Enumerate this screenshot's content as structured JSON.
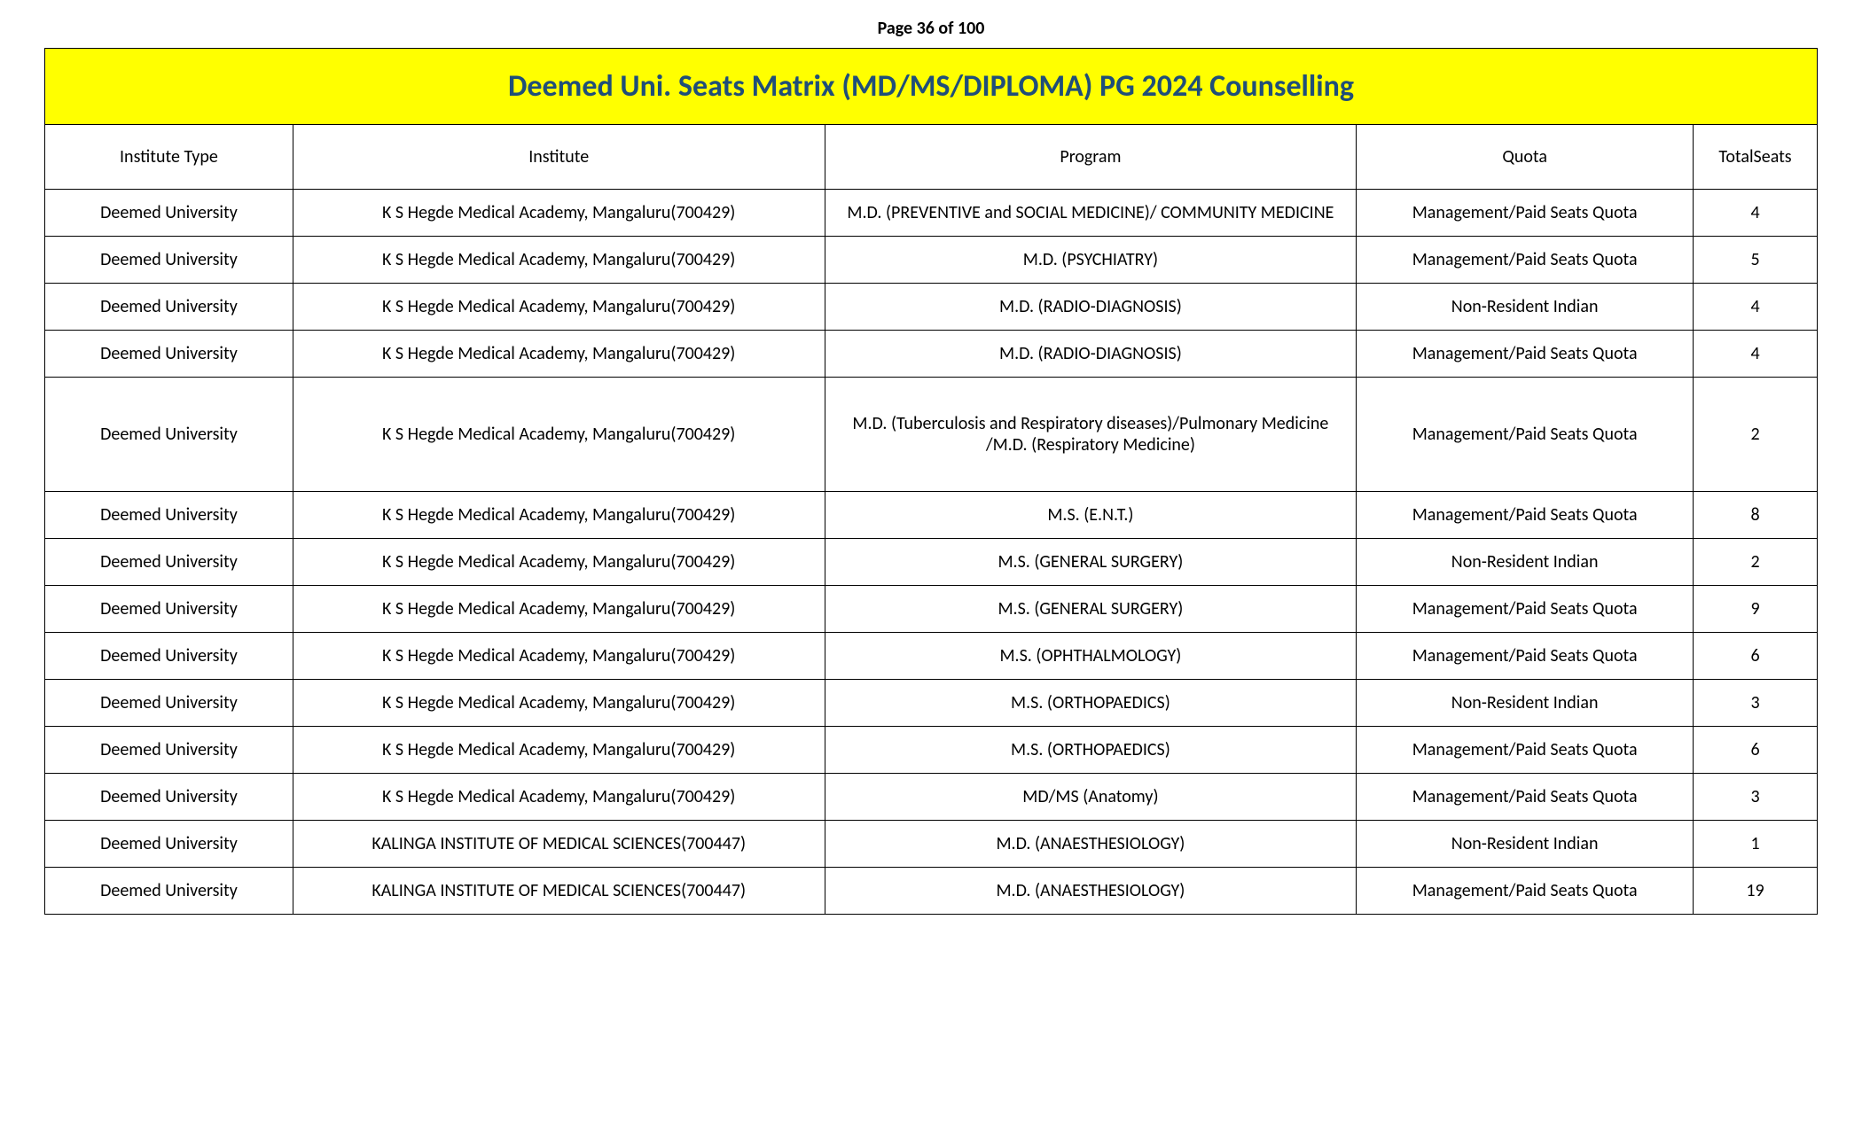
{
  "page_label": "Page 36 of 100",
  "title": "Deemed Uni. Seats Matrix (MD/MS/DIPLOMA) PG 2024 Counselling",
  "columns": [
    "Institute Type",
    "Institute",
    "Program",
    "Quota",
    "TotalSeats"
  ],
  "rows": [
    {
      "type": "Deemed University",
      "institute": "K S Hegde Medical Academy, Mangaluru(700429)",
      "program": "M.D. (PREVENTIVE and SOCIAL MEDICINE)/ COMMUNITY MEDICINE",
      "quota": "Management/Paid Seats Quota",
      "seats": "4",
      "tall": false
    },
    {
      "type": "Deemed University",
      "institute": "K S Hegde Medical Academy, Mangaluru(700429)",
      "program": "M.D. (PSYCHIATRY)",
      "quota": "Management/Paid Seats Quota",
      "seats": "5",
      "tall": false
    },
    {
      "type": "Deemed University",
      "institute": "K S Hegde Medical Academy, Mangaluru(700429)",
      "program": "M.D. (RADIO-DIAGNOSIS)",
      "quota": "Non-Resident Indian",
      "seats": "4",
      "tall": false
    },
    {
      "type": "Deemed University",
      "institute": "K S Hegde Medical Academy, Mangaluru(700429)",
      "program": "M.D. (RADIO-DIAGNOSIS)",
      "quota": "Management/Paid Seats Quota",
      "seats": "4",
      "tall": false
    },
    {
      "type": "Deemed University",
      "institute": "K S Hegde Medical Academy, Mangaluru(700429)",
      "program": "M.D. (Tuberculosis and Respiratory diseases)/Pulmonary Medicine /M.D. (Respiratory Medicine)",
      "quota": "Management/Paid Seats Quota",
      "seats": "2",
      "tall": true
    },
    {
      "type": "Deemed University",
      "institute": "K S Hegde Medical Academy, Mangaluru(700429)",
      "program": "M.S. (E.N.T.)",
      "quota": "Management/Paid Seats Quota",
      "seats": "8",
      "tall": false
    },
    {
      "type": "Deemed University",
      "institute": "K S Hegde Medical Academy, Mangaluru(700429)",
      "program": "M.S. (GENERAL SURGERY)",
      "quota": "Non-Resident Indian",
      "seats": "2",
      "tall": false
    },
    {
      "type": "Deemed University",
      "institute": "K S Hegde Medical Academy, Mangaluru(700429)",
      "program": "M.S. (GENERAL SURGERY)",
      "quota": "Management/Paid Seats Quota",
      "seats": "9",
      "tall": false
    },
    {
      "type": "Deemed University",
      "institute": "K S Hegde Medical Academy, Mangaluru(700429)",
      "program": "M.S. (OPHTHALMOLOGY)",
      "quota": "Management/Paid Seats Quota",
      "seats": "6",
      "tall": false
    },
    {
      "type": "Deemed University",
      "institute": "K S Hegde Medical Academy, Mangaluru(700429)",
      "program": "M.S. (ORTHOPAEDICS)",
      "quota": "Non-Resident Indian",
      "seats": "3",
      "tall": false
    },
    {
      "type": "Deemed University",
      "institute": "K S Hegde Medical Academy, Mangaluru(700429)",
      "program": "M.S. (ORTHOPAEDICS)",
      "quota": "Management/Paid Seats Quota",
      "seats": "6",
      "tall": false
    },
    {
      "type": "Deemed University",
      "institute": "K S Hegde Medical Academy, Mangaluru(700429)",
      "program": "MD/MS (Anatomy)",
      "quota": "Management/Paid Seats Quota",
      "seats": "3",
      "tall": false
    },
    {
      "type": "Deemed University",
      "institute": "KALINGA INSTITUTE OF MEDICAL SCIENCES(700447)",
      "program": "M.D. (ANAESTHESIOLOGY)",
      "quota": "Non-Resident Indian",
      "seats": "1",
      "tall": false
    },
    {
      "type": "Deemed University",
      "institute": "KALINGA INSTITUTE OF MEDICAL SCIENCES(700447)",
      "program": "M.D. (ANAESTHESIOLOGY)",
      "quota": "Management/Paid Seats Quota",
      "seats": "19",
      "tall": false
    }
  ],
  "colors": {
    "title_bg": "#ffff00",
    "title_text": "#1f4e79",
    "border": "#000000",
    "body_text": "#000000",
    "background": "#ffffff"
  }
}
